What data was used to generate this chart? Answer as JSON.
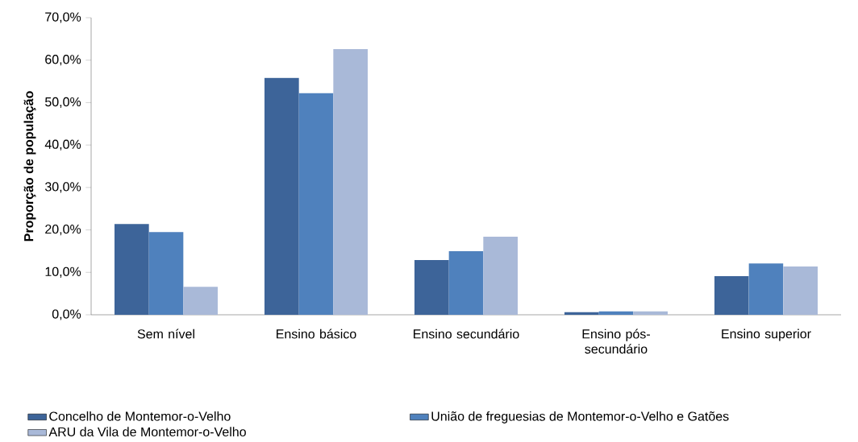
{
  "chart_data": {
    "type": "bar",
    "ylabel": "Proporção de população",
    "categories": [
      "Sem nível",
      "Ensino básico",
      "Ensino secundário",
      "Ensino pós-secundário",
      "Ensino superior"
    ],
    "series": [
      {
        "name": "Concelho de Montemor-o-Velho",
        "color": "#3d6499",
        "values": [
          21.4,
          55.8,
          12.9,
          0.6,
          9.1
        ]
      },
      {
        "name": "União de freguesias de Montemor-o-Velho e Gatões",
        "color": "#4f81bd",
        "values": [
          19.5,
          52.2,
          15.0,
          0.8,
          12.1
        ]
      },
      {
        "name": "ARU da Vila de Montemor-o-Velho",
        "color": "#a9b9d8",
        "values": [
          6.6,
          62.6,
          18.4,
          0.8,
          11.4
        ]
      }
    ],
    "ylim": [
      0,
      70
    ],
    "yticks": [
      {
        "value": 0,
        "label": "0,0%"
      },
      {
        "value": 10,
        "label": "10,0%"
      },
      {
        "value": 20,
        "label": "20,0%"
      },
      {
        "value": 30,
        "label": "30,0%"
      },
      {
        "value": 40,
        "label": "40,0%"
      },
      {
        "value": 50,
        "label": "50,0%"
      },
      {
        "value": 60,
        "label": "60,0%"
      },
      {
        "value": 70,
        "label": "70,0%"
      }
    ],
    "legend": "bottom"
  }
}
